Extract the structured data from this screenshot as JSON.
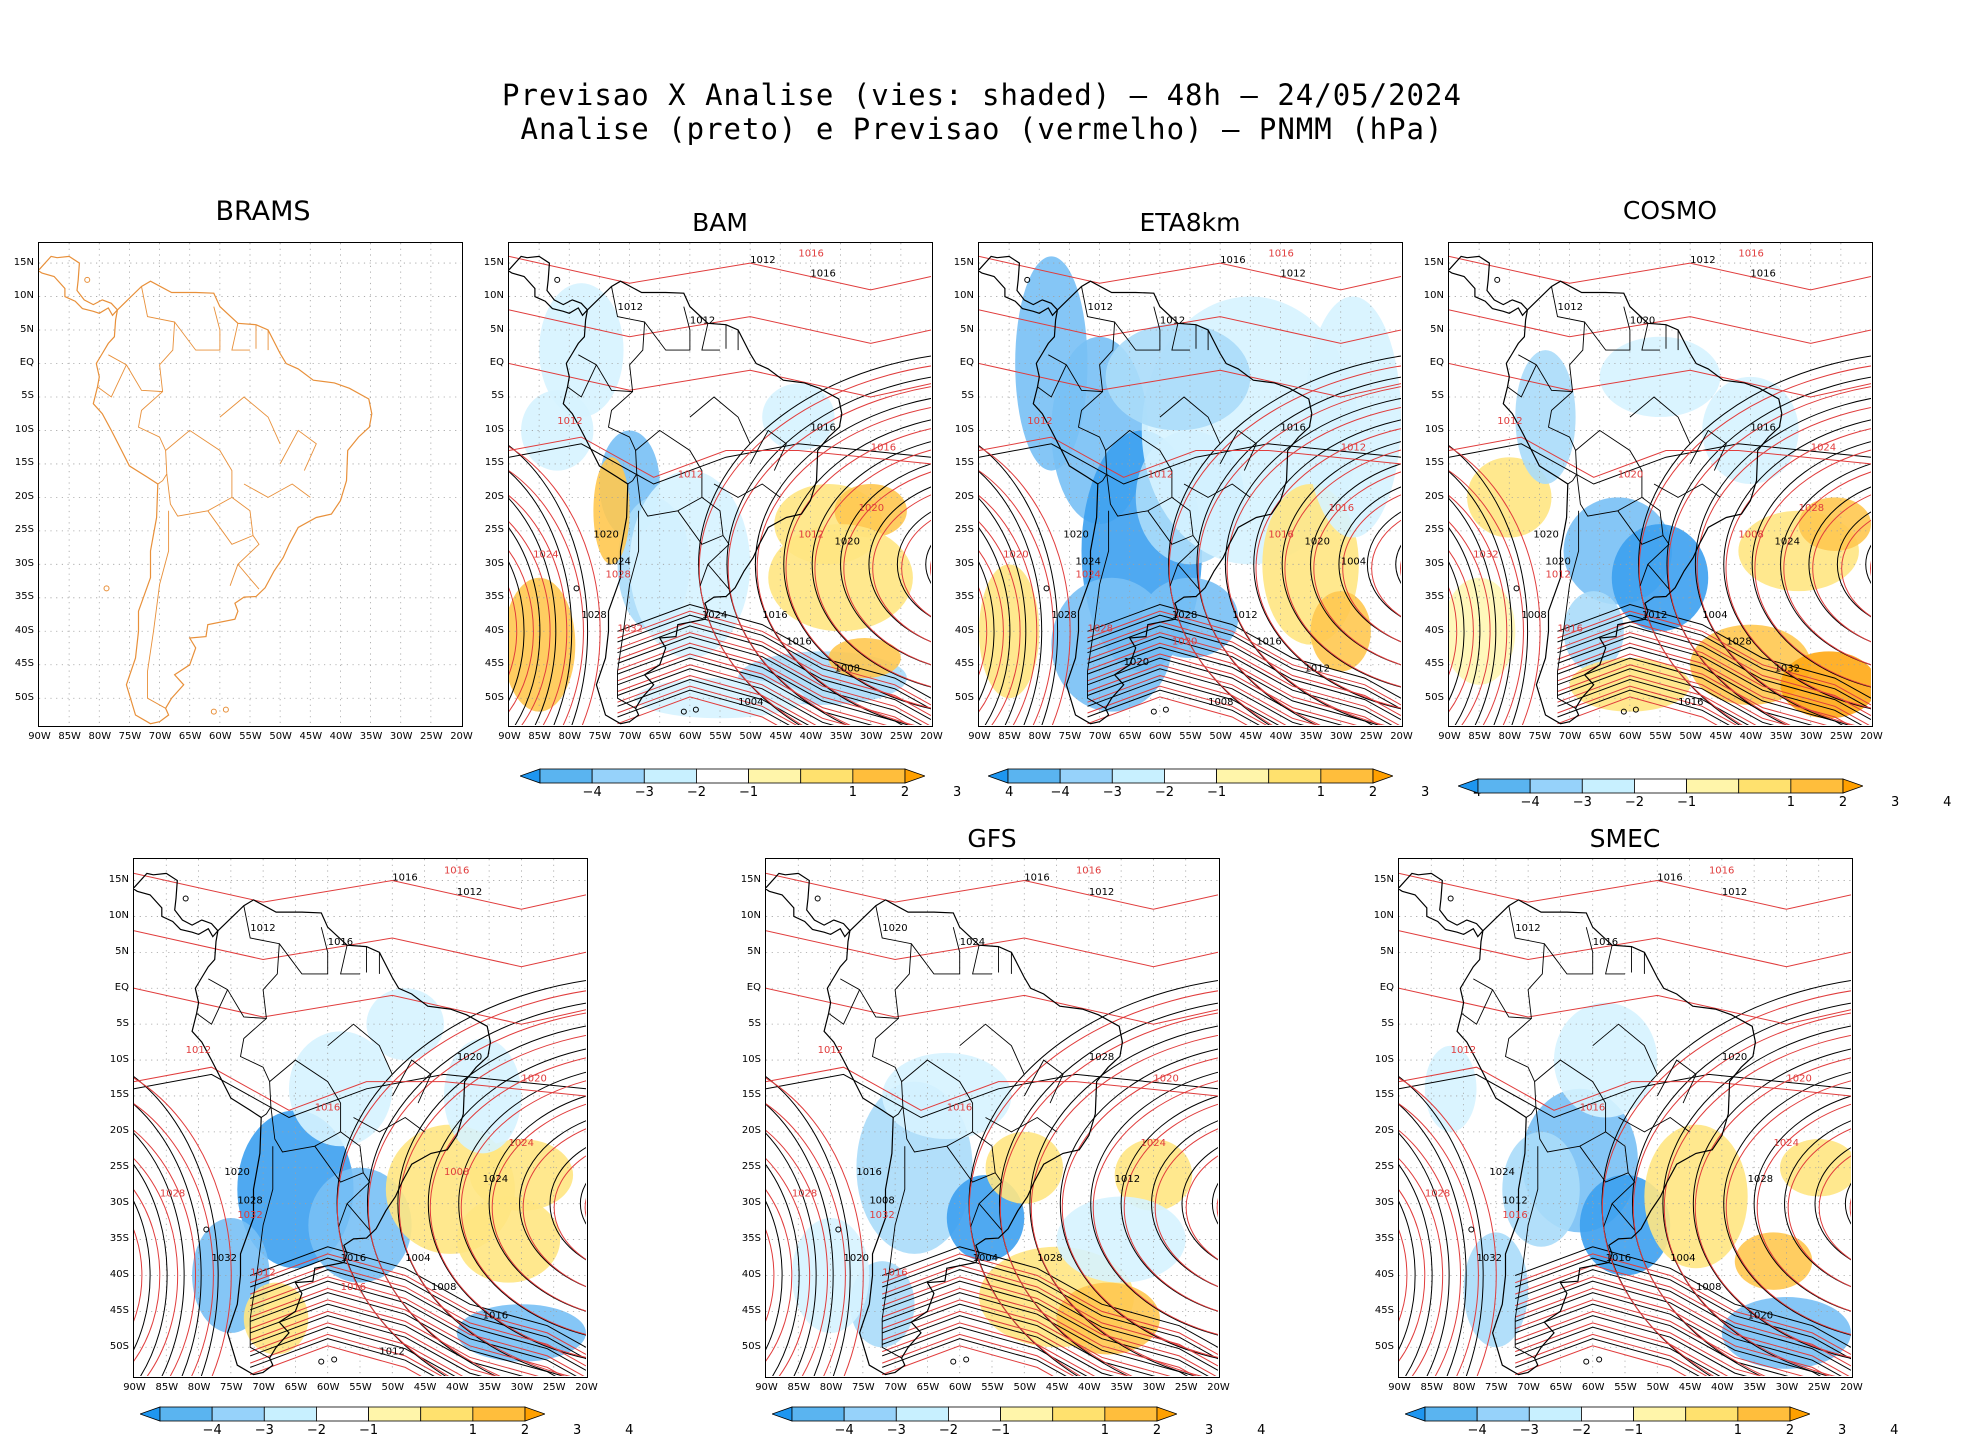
{
  "header": {
    "line1": "Previsao X Analise (vies: shaded) — 48h — 24/05/2024",
    "line2": "Analise (preto) e Previsao (vermelho) — PNMM (hPa)"
  },
  "axes": {
    "lat_labels": [
      "15N",
      "10N",
      "5N",
      "EQ",
      "5S",
      "10S",
      "15S",
      "20S",
      "25S",
      "30S",
      "35S",
      "40S",
      "45S",
      "50S"
    ],
    "lon_labels": [
      "90W",
      "85W",
      "80W",
      "75W",
      "70W",
      "65W",
      "60W",
      "55W",
      "50W",
      "45W",
      "40W",
      "35W",
      "30W",
      "25W",
      "20W"
    ]
  },
  "colorbar": {
    "labels": [
      "−4",
      "−3",
      "−2",
      "−1",
      "1",
      "2",
      "3",
      "4"
    ],
    "colors": [
      "#1e96f0",
      "#5ab4f0",
      "#96d2fa",
      "#c8f0ff",
      "#ffffff",
      "#fff5aa",
      "#ffe16e",
      "#ffbe3c",
      "#ffa000"
    ]
  },
  "colors": {
    "continent_brams": "#e8903a",
    "analysis_contour": "#000000",
    "forecast_contour": "#e03c3c",
    "grid": "#a0a0a0"
  },
  "panels": [
    {
      "id": "brams",
      "title": "BRAMS",
      "shaded": false,
      "labels_black": [],
      "labels_red": []
    },
    {
      "id": "bam",
      "title": "BAM",
      "shaded": true,
      "labels_black": [
        "1012",
        "1016",
        "1012",
        "1012",
        "1016",
        "1020",
        "1020",
        "1024",
        "1024",
        "1028",
        "1016",
        "1016",
        "1008",
        "1004"
      ],
      "labels_red": [
        "1016",
        "1012",
        "1012",
        "1016",
        "1020",
        "1024",
        "1028",
        "1032",
        "1012"
      ]
    },
    {
      "id": "eta8km",
      "title": "ETA8km",
      "shaded": true,
      "labels_black": [
        "1016",
        "1012",
        "1012",
        "1012",
        "1016",
        "1020",
        "1020",
        "1024",
        "1028",
        "1028",
        "1012",
        "1016",
        "1012",
        "1008",
        "1004",
        "1020"
      ],
      "labels_red": [
        "1016",
        "1012",
        "1012",
        "1012",
        "1016",
        "1020",
        "1024",
        "1028",
        "1016",
        "1020"
      ]
    },
    {
      "id": "cosmo",
      "title": "COSMO",
      "shaded": true,
      "labels_black": [
        "1012",
        "1016",
        "1012",
        "1020",
        "1016",
        "1020",
        "1024",
        "1020",
        "1012",
        "1008",
        "1004",
        "1028",
        "1032",
        "1016"
      ],
      "labels_red": [
        "1016",
        "1012",
        "1020",
        "1024",
        "1028",
        "1032",
        "1012",
        "1016",
        "1008"
      ]
    },
    {
      "id": "panel5",
      "title": "",
      "shaded": true,
      "labels_black": [
        "1016",
        "1012",
        "1012",
        "1016",
        "1020",
        "1020",
        "1024",
        "1028",
        "1016",
        "1032",
        "1004",
        "1008",
        "1016",
        "1012"
      ],
      "labels_red": [
        "1016",
        "1012",
        "1016",
        "1020",
        "1024",
        "1028",
        "1032",
        "1012",
        "1008",
        "1016"
      ]
    },
    {
      "id": "gfs",
      "title": "GFS",
      "shaded": true,
      "labels_black": [
        "1016",
        "1012",
        "1020",
        "1024",
        "1028",
        "1016",
        "1012",
        "1008",
        "1004",
        "1020",
        "1028"
      ],
      "labels_red": [
        "1016",
        "1012",
        "1016",
        "1020",
        "1024",
        "1028",
        "1032",
        "1016"
      ]
    },
    {
      "id": "smec",
      "title": "SMEC",
      "shaded": true,
      "labels_black": [
        "1016",
        "1012",
        "1012",
        "1016",
        "1020",
        "1024",
        "1028",
        "1012",
        "1016",
        "1032",
        "1004",
        "1008",
        "1020"
      ],
      "labels_red": [
        "1016",
        "1012",
        "1016",
        "1020",
        "1024",
        "1028",
        "1016"
      ]
    }
  ]
}
